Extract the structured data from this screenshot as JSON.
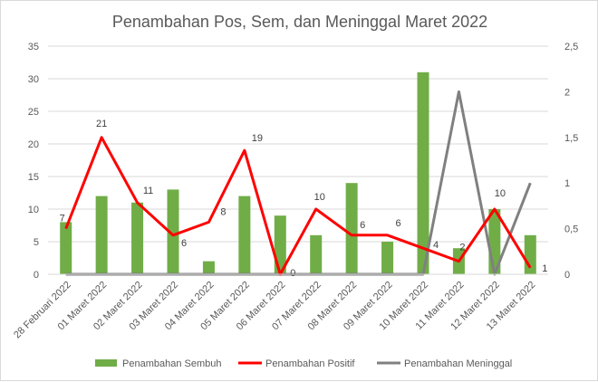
{
  "chart_data": {
    "type": "bar",
    "title": "Penambahan Pos, Sem, dan Meninggal Maret 2022",
    "categories": [
      "28 Februari 2022",
      "01 Maret 2022",
      "02 Maret 2022",
      "03 Maret 2022",
      "04 Maret 2022",
      "05 Maret 2022",
      "06 Maret 2022",
      "07 Maret 2022",
      "08 Maret 2022",
      "09 Maret 2022",
      "10 Maret 2022",
      "11 Maret 2022",
      "12 Maret 2022",
      "13 Maret 2022"
    ],
    "series": [
      {
        "name": "Penambahan Sembuh",
        "type": "bar",
        "axis": "left",
        "color": "#70ad47",
        "values": [
          8,
          12,
          11,
          13,
          2,
          12,
          9,
          6,
          14,
          5,
          31,
          4,
          10,
          6
        ]
      },
      {
        "name": "Penambahan Positif",
        "type": "line",
        "axis": "left",
        "color": "#ff0000",
        "values": [
          7,
          21,
          11,
          6,
          8,
          19,
          0,
          10,
          6,
          6,
          4,
          2,
          10,
          1
        ],
        "data_labels": [
          "7",
          "21",
          "11",
          "6",
          "8",
          "19",
          "0",
          "10",
          "6",
          "6",
          "4",
          "2",
          "10",
          "1"
        ]
      },
      {
        "name": "Penambahan Meninggal",
        "type": "line",
        "axis": "right",
        "color": "#808080",
        "values": [
          0,
          0,
          0,
          0,
          0,
          0,
          0,
          0,
          0,
          0,
          0,
          2,
          0,
          1
        ]
      }
    ],
    "y_left": {
      "min": 0,
      "max": 35,
      "ticks": [
        "0",
        "5",
        "10",
        "15",
        "20",
        "25",
        "30",
        "35"
      ]
    },
    "y_right": {
      "min": 0,
      "max": 2.5,
      "ticks": [
        "0",
        "0,5",
        "1",
        "1,5",
        "2",
        "2,5"
      ]
    },
    "grid": true,
    "legend_position": "bottom"
  }
}
